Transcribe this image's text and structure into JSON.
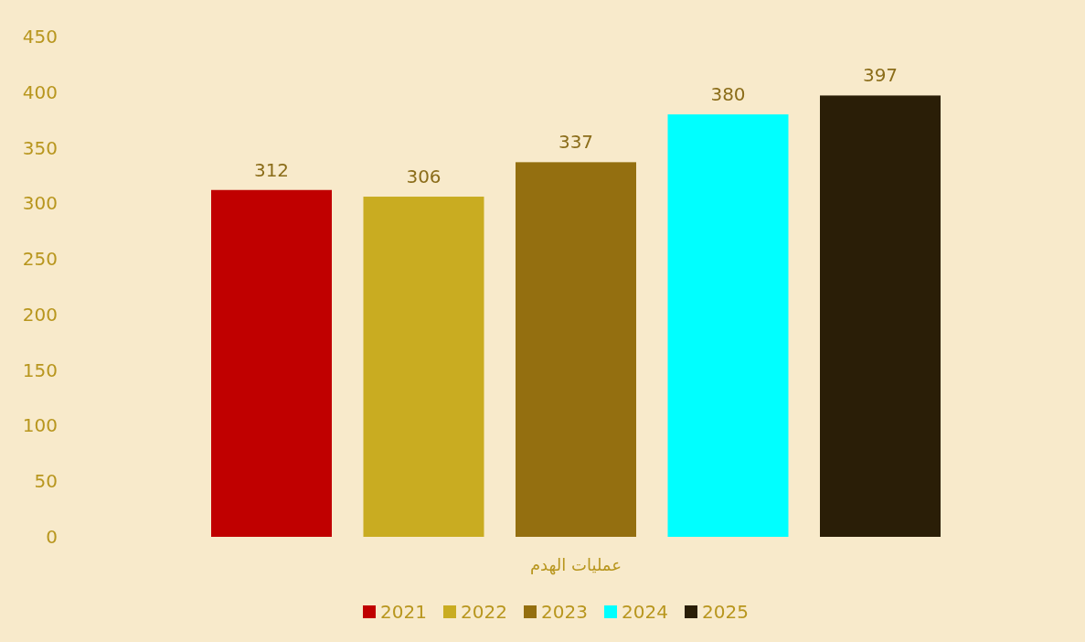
{
  "chart_data": {
    "type": "bar",
    "categories": [
      null
    ],
    "xlabel": "عمليات الهدم",
    "series": [
      {
        "name": "2021",
        "color": "#c00000",
        "values": [
          312
        ]
      },
      {
        "name": "2022",
        "color": "#c9ac21",
        "values": [
          306
        ]
      },
      {
        "name": "2023",
        "color": "#946f10",
        "values": [
          337
        ]
      },
      {
        "name": "2024",
        "color": "#00ffff",
        "values": [
          380
        ]
      },
      {
        "name": "2025",
        "color": "#2a1e07",
        "values": [
          397
        ]
      }
    ],
    "ylim": [
      0,
      450
    ],
    "yticks": [
      0,
      50,
      100,
      150,
      200,
      250,
      300,
      350,
      400,
      450
    ],
    "data_labels": true,
    "legend": "bottom",
    "grid": false
  }
}
